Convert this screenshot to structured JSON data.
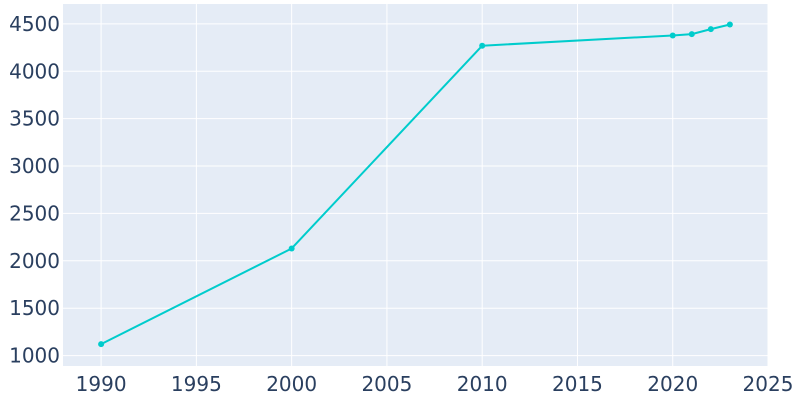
{
  "chart_data": {
    "type": "line",
    "title": "",
    "xlabel": "",
    "ylabel": "",
    "x": [
      1990,
      2000,
      2010,
      2020,
      2021,
      2022,
      2023
    ],
    "series": [
      {
        "values": [
          1121,
          2130,
          4270,
          4378,
          4392,
          4445,
          4494
        ]
      }
    ],
    "xlim": [
      1988,
      2025
    ],
    "ylim": [
      890,
      4710
    ],
    "xticks": [
      1990,
      1995,
      2000,
      2005,
      2010,
      2015,
      2020,
      2025
    ],
    "yticks": [
      1000,
      1500,
      2000,
      2500,
      3000,
      3500,
      4000,
      4500
    ],
    "grid": true,
    "legend": "none",
    "colors": {
      "line": "#00cccc",
      "plot_bg": "#e5ecf6",
      "grid": "#ffffff",
      "text": "#2a3f5f"
    }
  }
}
